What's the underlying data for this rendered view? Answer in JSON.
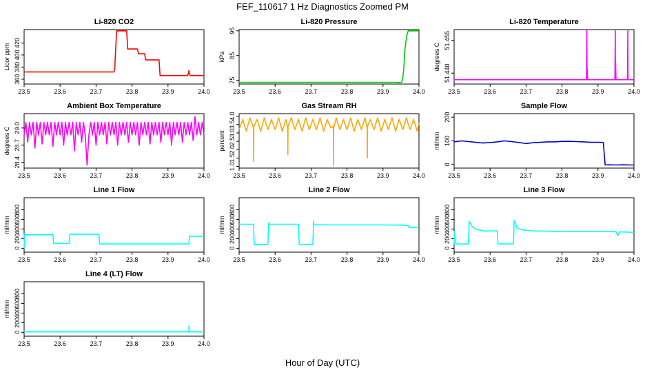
{
  "figure": {
    "title": "FEF_110617  1 Hz Diagnostics Zoomed PM",
    "xlabel": "Hour of Day (UTC)"
  },
  "chart_data": [
    {
      "type": "line",
      "title": "Li-820 CO2",
      "xlabel": "",
      "ylabel": "Licor ppm",
      "xlim": [
        23.5,
        24.0
      ],
      "ylim": [
        352,
        442
      ],
      "x_ticks": [
        23.5,
        23.6,
        23.7,
        23.8,
        23.9,
        24.0
      ],
      "x_tick_labels": [
        "23.5",
        "23.6",
        "23.7",
        "23.8",
        "23.9",
        "24.0"
      ],
      "y_ticks": [
        360,
        380,
        400,
        420
      ],
      "y_tick_labels": [
        "360",
        "380",
        "400",
        "420"
      ],
      "grid": false,
      "legend": "none",
      "series": [
        {
          "color": "#ff0000",
          "x": [
            23.5,
            23.75,
            23.752,
            23.757,
            23.785,
            23.788,
            23.815,
            23.818,
            23.835,
            23.838,
            23.875,
            23.878,
            23.955,
            23.958,
            23.96,
            23.962,
            24.0
          ],
          "y": [
            372,
            372,
            378,
            440,
            440,
            410,
            410,
            402,
            402,
            392,
            392,
            366,
            366,
            374,
            368,
            366,
            366
          ]
        }
      ]
    },
    {
      "type": "line",
      "title": "Li-820 Pressure",
      "xlabel": "",
      "ylabel": "kPa",
      "xlim": [
        23.5,
        24.0
      ],
      "ylim": [
        73.5,
        95.5
      ],
      "x_ticks": [
        23.5,
        23.6,
        23.7,
        23.8,
        23.9,
        24.0
      ],
      "x_tick_labels": [
        "23.5",
        "23.6",
        "23.7",
        "23.8",
        "23.9",
        "24.0"
      ],
      "y_ticks": [
        75,
        85,
        95
      ],
      "y_tick_labels": [
        "75",
        "85",
        "95"
      ],
      "grid": false,
      "legend": "none",
      "series": [
        {
          "color": "#00cc00",
          "x": [
            23.5,
            23.93,
            23.945,
            23.952,
            23.955,
            23.958,
            23.96,
            23.963,
            23.966,
            23.97,
            24.0
          ],
          "y": [
            74.2,
            74.2,
            74.1,
            74.2,
            76,
            80,
            86,
            90,
            93,
            95,
            95
          ]
        }
      ]
    },
    {
      "type": "line",
      "title": "Li-820 Temperature",
      "xlabel": "",
      "ylabel": "degrees C",
      "xlim": [
        23.5,
        24.0
      ],
      "ylim": [
        51.435,
        51.46
      ],
      "x_ticks": [
        23.5,
        23.6,
        23.7,
        23.8,
        23.9,
        24.0
      ],
      "x_tick_labels": [
        "23.5",
        "23.6",
        "23.7",
        "23.8",
        "23.9",
        "24.0"
      ],
      "y_ticks": [
        51.44,
        51.455
      ],
      "y_tick_labels": [
        "51.440",
        "51.455"
      ],
      "grid": false,
      "legend": "none",
      "series": [
        {
          "color": "#ff00ff",
          "x": [
            23.5,
            23.868,
            23.869,
            23.8695,
            23.87,
            23.871,
            23.872,
            23.947,
            23.948,
            23.9485,
            23.949,
            23.95,
            23.982,
            23.983,
            23.9835,
            23.984,
            24.0
          ],
          "y": [
            51.437,
            51.437,
            51.46,
            51.437,
            51.442,
            51.437,
            51.437,
            51.437,
            51.46,
            51.437,
            51.445,
            51.437,
            51.437,
            51.46,
            51.437,
            51.437,
            51.437
          ]
        }
      ]
    },
    {
      "type": "line",
      "title": "Ambient Box Temperature",
      "xlabel": "",
      "ylabel": "degrees C",
      "xlim": [
        23.5,
        24.0
      ],
      "ylim": [
        28.3,
        29.25
      ],
      "x_ticks": [
        23.5,
        23.6,
        23.7,
        23.8,
        23.9,
        24.0
      ],
      "x_tick_labels": [
        "23.5",
        "23.6",
        "23.7",
        "23.8",
        "23.9",
        "24.0"
      ],
      "y_ticks": [
        28.4,
        28.7,
        29.0
      ],
      "y_tick_labels": [
        "28.4",
        "28.7",
        "29.0"
      ],
      "grid": false,
      "legend": "none",
      "series": [
        {
          "color": "#ff00ff",
          "x": [
            23.5,
            23.505,
            23.51,
            23.515,
            23.52,
            23.525,
            23.53,
            23.535,
            23.54,
            23.545,
            23.55,
            23.555,
            23.56,
            23.565,
            23.57,
            23.575,
            23.58,
            23.585,
            23.59,
            23.595,
            23.6,
            23.605,
            23.61,
            23.615,
            23.62,
            23.625,
            23.63,
            23.635,
            23.64,
            23.645,
            23.65,
            23.655,
            23.66,
            23.665,
            23.67,
            23.675,
            23.68,
            23.685,
            23.69,
            23.695,
            23.7,
            23.705,
            23.71,
            23.715,
            23.72,
            23.725,
            23.73,
            23.735,
            23.74,
            23.745,
            23.75,
            23.755,
            23.76,
            23.765,
            23.77,
            23.775,
            23.78,
            23.785,
            23.79,
            23.795,
            23.8,
            23.805,
            23.81,
            23.815,
            23.82,
            23.825,
            23.83,
            23.835,
            23.84,
            23.845,
            23.85,
            23.855,
            23.86,
            23.865,
            23.87,
            23.875,
            23.88,
            23.885,
            23.89,
            23.895,
            23.9,
            23.905,
            23.91,
            23.915,
            23.92,
            23.925,
            23.93,
            23.935,
            23.94,
            23.945,
            23.95,
            23.955,
            23.96,
            23.965,
            23.97,
            23.975,
            23.98,
            23.985,
            23.99,
            23.995,
            24.0
          ],
          "y": [
            28.88,
            29.1,
            28.75,
            29.1,
            28.88,
            29.1,
            28.65,
            29.1,
            28.88,
            29.1,
            28.72,
            29.1,
            28.88,
            29.1,
            28.88,
            29.1,
            28.68,
            29.1,
            28.88,
            29.1,
            28.88,
            29.1,
            28.7,
            29.1,
            28.88,
            29.1,
            28.88,
            29.1,
            28.6,
            29.1,
            28.88,
            29.1,
            28.75,
            29.1,
            28.88,
            28.35,
            28.88,
            29.1,
            28.88,
            29.1,
            28.7,
            29.1,
            28.88,
            29.1,
            28.88,
            29.1,
            28.72,
            29.1,
            28.88,
            29.1,
            28.88,
            29.1,
            28.7,
            29.1,
            28.88,
            29.1,
            28.88,
            29.1,
            28.75,
            29.1,
            28.88,
            29.1,
            28.88,
            29.1,
            28.7,
            29.1,
            28.88,
            29.1,
            28.88,
            29.1,
            28.72,
            29.1,
            28.88,
            29.1,
            28.88,
            29.1,
            28.75,
            29.1,
            28.88,
            29.1,
            28.88,
            29.1,
            28.7,
            29.1,
            28.88,
            29.1,
            28.88,
            29.1,
            28.75,
            29.1,
            28.88,
            29.1,
            28.88,
            29.1,
            28.78,
            29.2,
            28.88,
            29.1,
            28.88,
            29.1,
            28.88
          ]
        }
      ]
    },
    {
      "type": "line",
      "title": "Gas Stream RH",
      "xlabel": "",
      "ylabel": "percent",
      "xlim": [
        23.5,
        24.0
      ],
      "ylim": [
        0.9,
        4.15
      ],
      "x_ticks": [
        23.5,
        23.6,
        23.7,
        23.8,
        23.9,
        24.0
      ],
      "x_tick_labels": [
        "23.5",
        "23.6",
        "23.7",
        "23.8",
        "23.9",
        "24.0"
      ],
      "y_ticks": [
        1.0,
        1.5,
        2.0,
        2.5,
        3.0,
        3.5,
        4.0
      ],
      "y_tick_labels": [
        "1.0",
        "1.5",
        "2.0",
        "2.5",
        "3.0",
        "3.5",
        "4.0"
      ],
      "grid": false,
      "legend": "none",
      "series": [
        {
          "color": "#ffa500",
          "x": [
            23.5,
            23.51,
            23.52,
            23.53,
            23.54,
            23.5405,
            23.541,
            23.55,
            23.56,
            23.57,
            23.58,
            23.59,
            23.6,
            23.61,
            23.62,
            23.63,
            23.635,
            23.6355,
            23.636,
            23.645,
            23.655,
            23.665,
            23.675,
            23.685,
            23.695,
            23.705,
            23.715,
            23.725,
            23.735,
            23.745,
            23.755,
            23.762,
            23.7625,
            23.763,
            23.77,
            23.78,
            23.79,
            23.8,
            23.81,
            23.82,
            23.83,
            23.84,
            23.85,
            23.856,
            23.8565,
            23.857,
            23.865,
            23.875,
            23.885,
            23.895,
            23.905,
            23.915,
            23.925,
            23.935,
            23.945,
            23.955,
            23.965,
            23.975,
            23.985,
            23.995,
            24.0
          ],
          "y": [
            3.2,
            3.8,
            3.1,
            3.9,
            3.3,
            1.3,
            3.4,
            3.8,
            3.1,
            3.9,
            3.2,
            3.8,
            3.2,
            3.9,
            3.1,
            3.8,
            3.3,
            1.7,
            3.4,
            3.9,
            3.2,
            3.8,
            3.1,
            3.9,
            3.2,
            3.8,
            3.2,
            3.9,
            3.1,
            3.8,
            3.3,
            3.4,
            1.05,
            3.3,
            3.9,
            3.2,
            3.8,
            3.2,
            3.9,
            3.1,
            3.8,
            3.2,
            3.9,
            3.3,
            1.5,
            3.4,
            3.8,
            3.2,
            3.9,
            3.1,
            3.8,
            3.2,
            3.9,
            3.1,
            3.8,
            3.2,
            3.9,
            3.2,
            3.8,
            3.1,
            3.6
          ]
        }
      ]
    },
    {
      "type": "line",
      "title": "Sample Flow",
      "xlabel": "",
      "ylabel": "ml/min",
      "xlim": [
        23.5,
        24.0
      ],
      "ylim": [
        -15,
        215
      ],
      "x_ticks": [
        23.5,
        23.6,
        23.7,
        23.8,
        23.9,
        24.0
      ],
      "x_tick_labels": [
        "23.5",
        "23.6",
        "23.7",
        "23.8",
        "23.9",
        "24.0"
      ],
      "y_ticks": [
        0,
        100,
        200
      ],
      "y_tick_labels": [
        "0",
        "100",
        "200"
      ],
      "grid": false,
      "legend": "none",
      "series": [
        {
          "color": "#0000cd",
          "x": [
            23.5,
            23.52,
            23.54,
            23.56,
            23.58,
            23.6,
            23.62,
            23.64,
            23.66,
            23.68,
            23.7,
            23.72,
            23.74,
            23.76,
            23.78,
            23.8,
            23.82,
            23.84,
            23.86,
            23.88,
            23.9,
            23.915,
            23.917,
            23.92,
            23.93,
            23.95,
            23.97,
            23.99,
            24.0
          ],
          "y": [
            96,
            100,
            97,
            94,
            91,
            93,
            96,
            100,
            97,
            93,
            89,
            92,
            94,
            96,
            96,
            98,
            98,
            97,
            96,
            94,
            94,
            93,
            50,
            -2,
            -1,
            -2,
            -1,
            -2,
            -2
          ]
        }
      ]
    },
    {
      "type": "line",
      "title": "Line 1 Flow",
      "xlabel": "",
      "ylabel": "ml/min",
      "xlim": [
        23.5,
        24.0
      ],
      "ylim": [
        -80,
        1050
      ],
      "x_ticks": [
        23.5,
        23.6,
        23.7,
        23.8,
        23.9,
        24.0
      ],
      "x_tick_labels": [
        "23.5",
        "23.6",
        "23.7",
        "23.8",
        "23.9",
        "24.0"
      ],
      "y_ticks": [
        0,
        200,
        400,
        600,
        800
      ],
      "y_tick_labels": [
        "0",
        "200",
        "400",
        "600",
        "800"
      ],
      "grid": false,
      "legend": "none",
      "series": [
        {
          "color": "#00ffff",
          "x": [
            23.5,
            23.5005,
            23.501,
            23.502,
            23.58,
            23.582,
            23.625,
            23.627,
            23.708,
            23.71,
            23.958,
            23.96,
            24.0
          ],
          "y": [
            0,
            120,
            300,
            280,
            280,
            100,
            100,
            290,
            290,
            90,
            90,
            250,
            250
          ]
        }
      ]
    },
    {
      "type": "line",
      "title": "Line 2 Flow",
      "xlabel": "",
      "ylabel": "ml/min",
      "xlim": [
        23.5,
        24.0
      ],
      "ylim": [
        -80,
        1050
      ],
      "x_ticks": [
        23.5,
        23.6,
        23.7,
        23.8,
        23.9,
        24.0
      ],
      "x_tick_labels": [
        "23.5",
        "23.6",
        "23.7",
        "23.8",
        "23.9",
        "24.0"
      ],
      "y_ticks": [
        0,
        200,
        400,
        600,
        800
      ],
      "y_tick_labels": [
        "0",
        "200",
        "400",
        "600",
        "800"
      ],
      "grid": false,
      "legend": "none",
      "series": [
        {
          "color": "#00ffff",
          "x": [
            23.5,
            23.54,
            23.542,
            23.58,
            23.582,
            23.583,
            23.665,
            23.667,
            23.705,
            23.707,
            23.708,
            23.75,
            23.8,
            23.85,
            23.9,
            23.95,
            23.97,
            23.973,
            24.0
          ],
          "y": [
            500,
            500,
            80,
            80,
            520,
            500,
            500,
            80,
            80,
            560,
            490,
            485,
            485,
            485,
            485,
            480,
            470,
            430,
            430
          ]
        }
      ]
    },
    {
      "type": "line",
      "title": "Line 3 Flow",
      "xlabel": "",
      "ylabel": "ml/min",
      "xlim": [
        23.5,
        24.0
      ],
      "ylim": [
        -80,
        1050
      ],
      "x_ticks": [
        23.5,
        23.6,
        23.7,
        23.8,
        23.9,
        24.0
      ],
      "x_tick_labels": [
        "23.5",
        "23.6",
        "23.7",
        "23.8",
        "23.9",
        "24.0"
      ],
      "y_ticks": [
        0,
        200,
        400,
        600,
        800
      ],
      "y_tick_labels": [
        "0",
        "200",
        "400",
        "600",
        "800"
      ],
      "grid": false,
      "legend": "none",
      "series": [
        {
          "color": "#00ffff",
          "x": [
            23.5,
            23.5005,
            23.502,
            23.504,
            23.54,
            23.542,
            23.55,
            23.56,
            23.58,
            23.6,
            23.62,
            23.622,
            23.665,
            23.667,
            23.675,
            23.69,
            23.72,
            23.8,
            23.9,
            23.95,
            23.955,
            23.96,
            24.0
          ],
          "y": [
            80,
            350,
            200,
            90,
            90,
            560,
            450,
            400,
            360,
            360,
            360,
            90,
            90,
            580,
            420,
            380,
            360,
            350,
            350,
            345,
            260,
            340,
            330
          ]
        }
      ]
    },
    {
      "type": "line",
      "title": "Line 4 (LT) Flow",
      "xlabel": "",
      "ylabel": "ml/min",
      "xlim": [
        23.5,
        24.0
      ],
      "ylim": [
        -80,
        1050
      ],
      "x_ticks": [
        23.5,
        23.6,
        23.7,
        23.8,
        23.9,
        24.0
      ],
      "x_tick_labels": [
        "23.5",
        "23.6",
        "23.7",
        "23.8",
        "23.9",
        "24.0"
      ],
      "y_ticks": [
        0,
        200,
        400,
        600,
        800
      ],
      "y_tick_labels": [
        "0",
        "200",
        "400",
        "600",
        "800"
      ],
      "grid": false,
      "legend": "none",
      "series": [
        {
          "color": "#00ffff",
          "x": [
            23.5,
            23.958,
            23.9585,
            23.959,
            23.96,
            24.0
          ],
          "y": [
            10,
            10,
            140,
            30,
            10,
            10
          ]
        }
      ]
    }
  ]
}
